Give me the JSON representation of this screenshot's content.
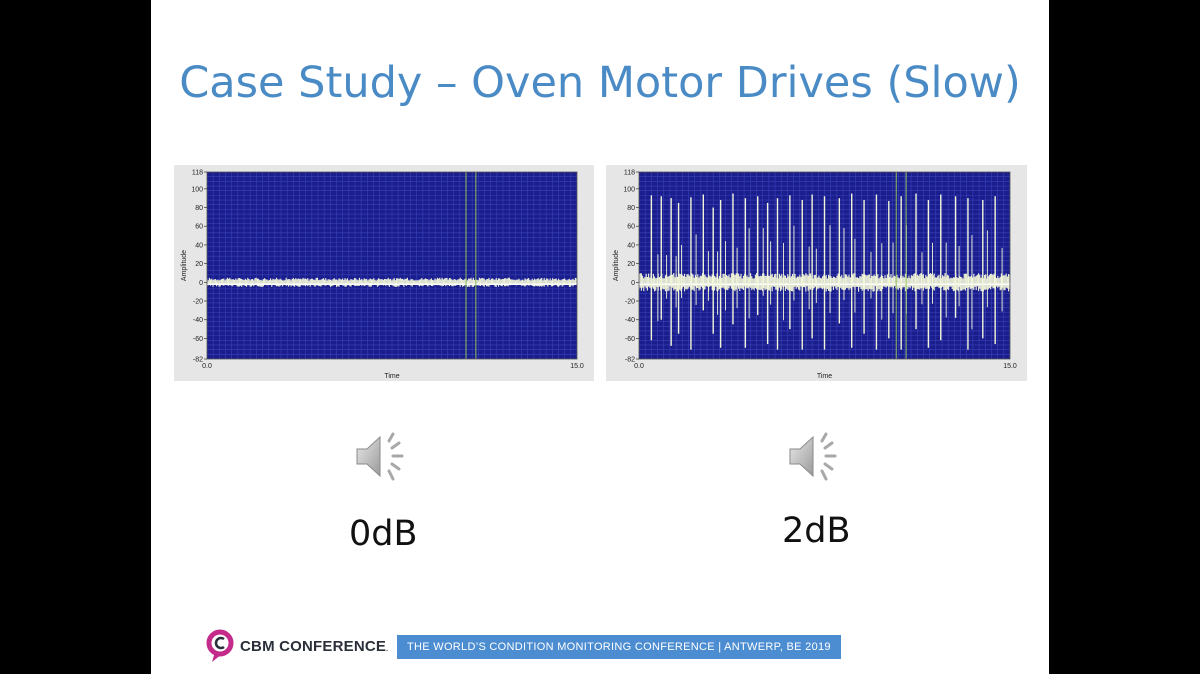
{
  "slide": {
    "title": "Case Study – Oven Motor Drives (Slow)"
  },
  "charts": [
    {
      "ylabel": "Amplitude",
      "xlabel": "Time",
      "yticks": [
        "118",
        "100",
        "80",
        "60",
        "40",
        "20",
        "0",
        "-20",
        "-40",
        "-60",
        "-82"
      ],
      "xticks": [
        "0.0",
        "15.0"
      ],
      "caption": "0dB"
    },
    {
      "ylabel": "Amplitude",
      "xlabel": "Time",
      "yticks": [
        "118",
        "100",
        "80",
        "60",
        "40",
        "20",
        "0",
        "-20",
        "-40",
        "-60",
        "-82"
      ],
      "xticks": [
        "0.0",
        "15.0"
      ],
      "caption": "2dB"
    }
  ],
  "chart_data": [
    {
      "type": "line",
      "xlabel": "Time",
      "ylabel": "Amplitude",
      "xlim": [
        0.0,
        15.0
      ],
      "ylim": [
        -82,
        118
      ],
      "baseline": -2,
      "noise_band": [
        -5,
        5
      ],
      "cursor_x": [
        10.5,
        10.9
      ],
      "spikes": [],
      "colors": {
        "plot_bg": "#1a1d8c",
        "grid": "#3a41b8",
        "signal": "#f2f6d8",
        "cursor": "#8fbf5a"
      }
    },
    {
      "type": "line",
      "xlabel": "Time",
      "ylabel": "Amplitude",
      "xlim": [
        0.0,
        15.0
      ],
      "ylim": [
        -82,
        118
      ],
      "baseline": -2,
      "noise_band": [
        -10,
        10
      ],
      "cursor_x": [
        10.4,
        10.8
      ],
      "spikes": [
        [
          0.5,
          93,
          -62
        ],
        [
          0.9,
          92,
          -40
        ],
        [
          1.3,
          90,
          -68
        ],
        [
          1.6,
          85,
          -55
        ],
        [
          2.1,
          91,
          -72
        ],
        [
          2.6,
          94,
          -30
        ],
        [
          3.0,
          80,
          -55
        ],
        [
          3.3,
          88,
          -70
        ],
        [
          3.8,
          95,
          -45
        ],
        [
          4.3,
          90,
          -70
        ],
        [
          4.8,
          92,
          -35
        ],
        [
          5.2,
          85,
          -66
        ],
        [
          5.6,
          90,
          -72
        ],
        [
          6.1,
          93,
          -50
        ],
        [
          6.6,
          88,
          -72
        ],
        [
          7.0,
          94,
          -60
        ],
        [
          7.5,
          92,
          -72
        ],
        [
          8.1,
          90,
          -44
        ],
        [
          8.6,
          95,
          -70
        ],
        [
          9.1,
          88,
          -55
        ],
        [
          9.6,
          94,
          -72
        ],
        [
          10.1,
          87,
          -60
        ],
        [
          10.6,
          92,
          -72
        ],
        [
          11.2,
          95,
          -50
        ],
        [
          11.7,
          88,
          -70
        ],
        [
          12.2,
          94,
          -62
        ],
        [
          12.8,
          92,
          -38
        ],
        [
          13.3,
          90,
          -72
        ],
        [
          13.9,
          88,
          -60
        ],
        [
          14.4,
          92,
          -66
        ]
      ],
      "colors": {
        "plot_bg": "#1a1d8c",
        "grid": "#3a41b8",
        "signal": "#f2f6d8",
        "cursor": "#8fbf5a"
      }
    }
  ],
  "footer": {
    "logo_text": "CBM CONFERENCE",
    "logo_tm": ".",
    "banner_text": "THE  WORLD’S CONDITION MONITORING CONFERENCE  |  ANTWERP, BE  2019",
    "brand_color": "#4c8dd2",
    "logo_color": "#c42a8a"
  },
  "icons": {
    "speaker": "speaker-icon"
  }
}
